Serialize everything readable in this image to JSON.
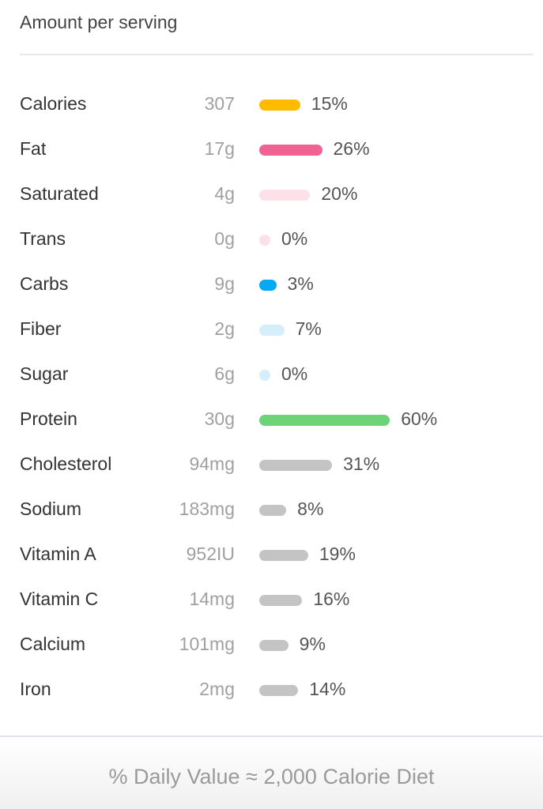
{
  "header": {
    "title": "Amount per serving"
  },
  "nutrients": [
    {
      "name": "Calories",
      "amount": "307",
      "percent": "15%",
      "value": 15,
      "color": "#FFBB00"
    },
    {
      "name": "Fat",
      "amount": "17g",
      "percent": "26%",
      "value": 26,
      "color": "#F06292"
    },
    {
      "name": "Saturated",
      "amount": "4g",
      "percent": "20%",
      "value": 20,
      "color": "#FDE0E8"
    },
    {
      "name": "Trans",
      "amount": "0g",
      "percent": "0%",
      "value": 0,
      "color": "#FDE0E8"
    },
    {
      "name": "Carbs",
      "amount": "9g",
      "percent": "3%",
      "value": 3,
      "color": "#03A9F4"
    },
    {
      "name": "Fiber",
      "amount": "2g",
      "percent": "7%",
      "value": 7,
      "color": "#D6EEFB"
    },
    {
      "name": "Sugar",
      "amount": "6g",
      "percent": "0%",
      "value": 0,
      "color": "#D6EEFB"
    },
    {
      "name": "Protein",
      "amount": "30g",
      "percent": "60%",
      "value": 60,
      "color": "#6CD477"
    },
    {
      "name": "Cholesterol",
      "amount": "94mg",
      "percent": "31%",
      "value": 31,
      "color": "#C4C4C4"
    },
    {
      "name": "Sodium",
      "amount": "183mg",
      "percent": "8%",
      "value": 8,
      "color": "#C4C4C4"
    },
    {
      "name": "Vitamin A",
      "amount": "952IU",
      "percent": "19%",
      "value": 19,
      "color": "#C4C4C4"
    },
    {
      "name": "Vitamin C",
      "amount": "14mg",
      "percent": "16%",
      "value": 16,
      "color": "#C4C4C4"
    },
    {
      "name": "Calcium",
      "amount": "101mg",
      "percent": "9%",
      "value": 9,
      "color": "#C4C4C4"
    },
    {
      "name": "Iron",
      "amount": "2mg",
      "percent": "14%",
      "value": 14,
      "color": "#C4C4C4"
    }
  ],
  "footer": {
    "text": "% Daily Value ≈ 2,000 Calorie Diet"
  }
}
